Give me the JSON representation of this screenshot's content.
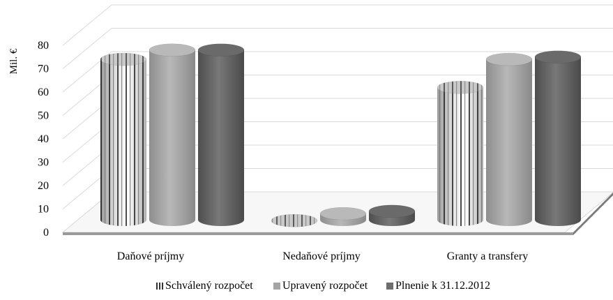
{
  "chart_data": {
    "type": "bar",
    "style": "3d-cylinder",
    "categories": [
      "Daňové príjmy",
      "Nedaňové príjmy",
      "Granty a transfery"
    ],
    "series": [
      {
        "name": "Schválený rozpočet",
        "values": [
          74,
          5,
          62
        ],
        "color": "#d8d8d8",
        "pattern": "vertical-stripes"
      },
      {
        "name": "Upravený rozpočet",
        "values": [
          78,
          8,
          74
        ],
        "color": "#a5a5a5"
      },
      {
        "name": "Plnenie k 31.12.2012",
        "values": [
          78,
          9,
          75
        ],
        "color": "#6d6d6d"
      }
    ],
    "ylabel": "Mil. €",
    "ylim": [
      0,
      80
    ],
    "yticks": [
      0,
      10,
      20,
      30,
      40,
      50,
      60,
      70,
      80
    ],
    "grid": true,
    "legend_position": "bottom"
  }
}
